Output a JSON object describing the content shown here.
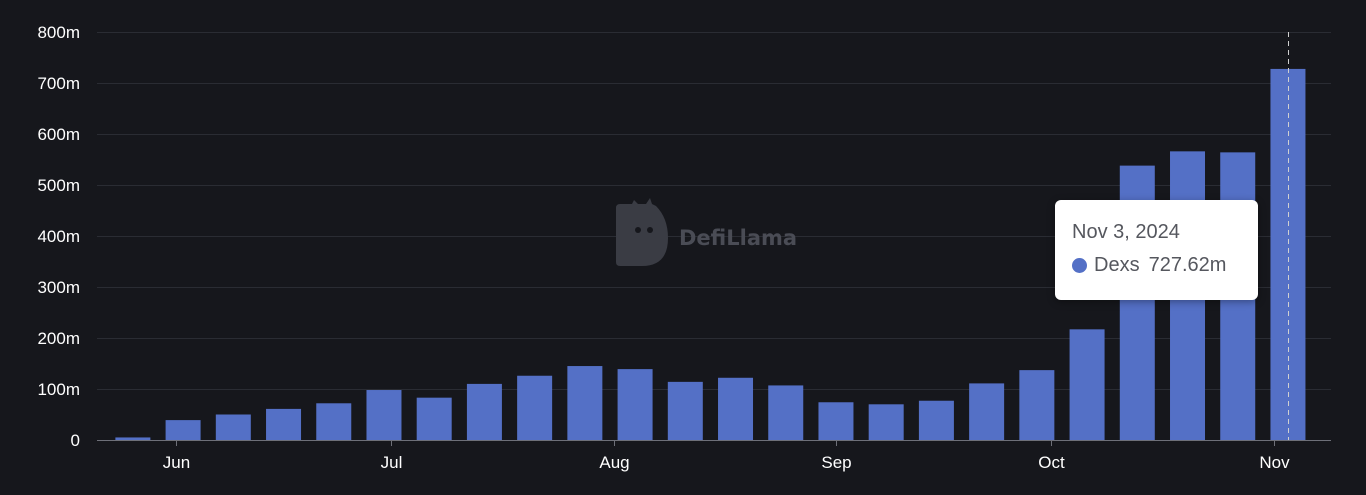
{
  "chart_data": {
    "type": "bar",
    "title": "",
    "xlabel": "",
    "ylabel": "",
    "ylim": [
      0,
      800
    ],
    "y_unit": "m",
    "y_ticks": [
      "0",
      "100m",
      "200m",
      "300m",
      "400m",
      "500m",
      "600m",
      "700m",
      "800m"
    ],
    "y_tick_values": [
      0,
      100,
      200,
      300,
      400,
      500,
      600,
      700,
      800
    ],
    "grid": true,
    "x_ticks": [
      "Jun",
      "Jul",
      "Aug",
      "Sep",
      "Oct",
      "Nov"
    ],
    "x_tick_dates": [
      "2024-06-01",
      "2024-07-01",
      "2024-08-01",
      "2024-09-01",
      "2024-10-01",
      "2024-11-01"
    ],
    "x_start": "2024-05-21",
    "x_end": "2024-11-09",
    "categories": [
      "2024-05-26",
      "2024-06-02",
      "2024-06-09",
      "2024-06-16",
      "2024-06-23",
      "2024-06-30",
      "2024-07-07",
      "2024-07-14",
      "2024-07-21",
      "2024-07-28",
      "2024-08-04",
      "2024-08-11",
      "2024-08-18",
      "2024-08-25",
      "2024-09-01",
      "2024-09-08",
      "2024-09-15",
      "2024-09-22",
      "2024-09-29",
      "2024-10-06",
      "2024-10-13",
      "2024-10-20",
      "2024-10-27",
      "2024-11-03"
    ],
    "series": [
      {
        "name": "Dexs",
        "color": "#5470c6",
        "values": [
          5,
          39,
          50,
          61,
          72,
          98,
          83,
          110,
          126,
          145,
          139,
          114,
          122,
          107,
          74,
          70,
          77,
          111,
          137,
          217,
          538,
          566,
          564,
          727.62
        ]
      }
    ],
    "highlight_index": 23
  },
  "watermark": {
    "text": "DefiLlama"
  },
  "tooltip": {
    "date": "Nov 3, 2024",
    "series_name": "Dexs",
    "value": "727.62m",
    "dot_color": "#5470c6"
  },
  "colors": {
    "background": "#16171c",
    "grid": "#2a2c33",
    "axis": "#6e7079",
    "bar": "#5470c6",
    "text": "#ffffff"
  }
}
